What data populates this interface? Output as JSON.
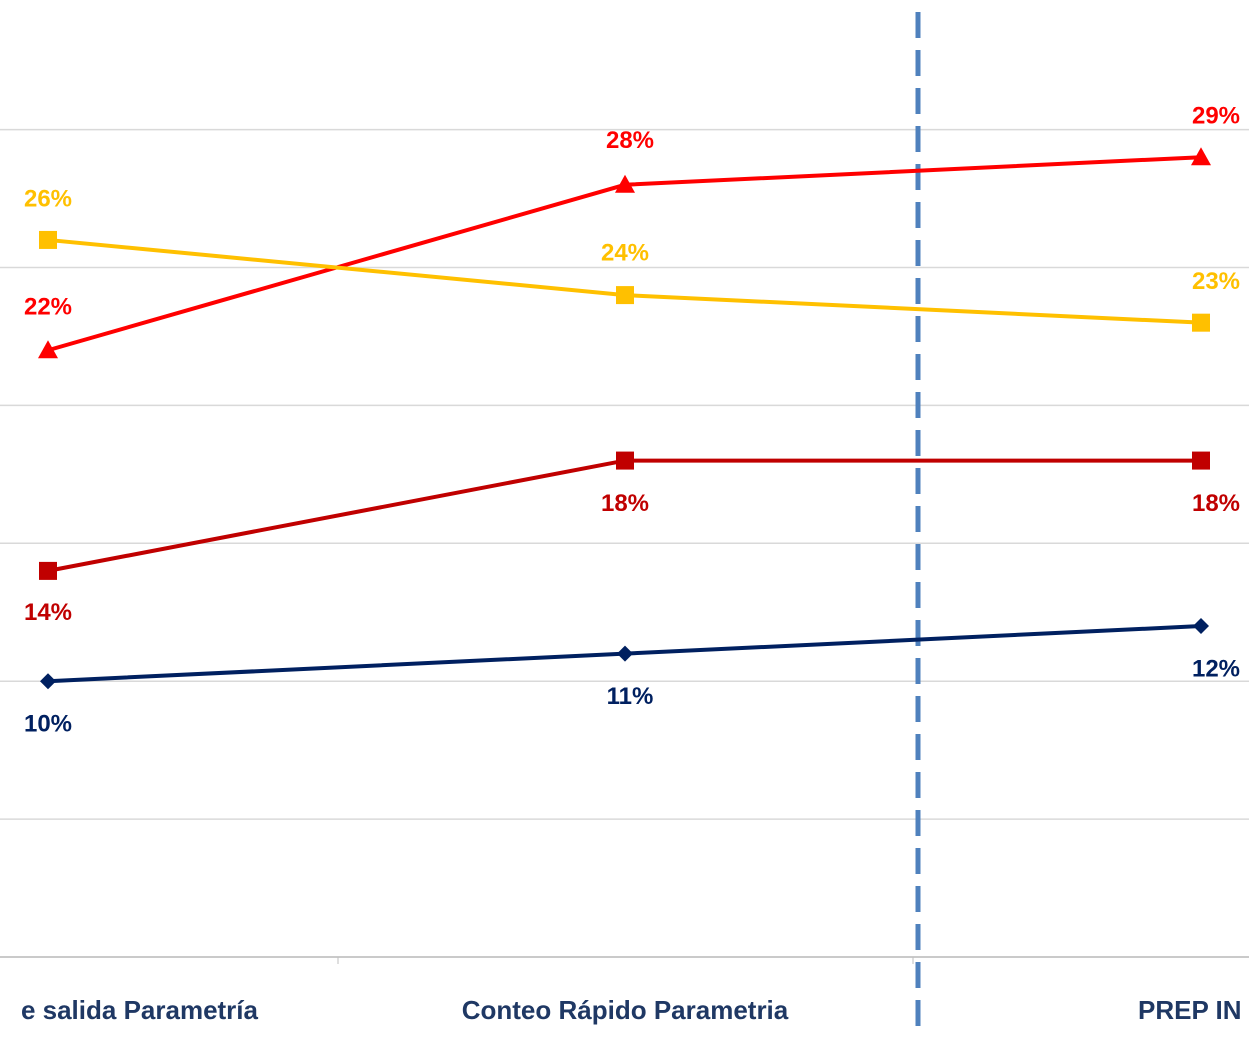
{
  "chart_data": {
    "type": "line",
    "categories": [
      "e salida Parametría",
      "Conteo Rápido Parametria",
      "PREP IN"
    ],
    "ylim": [
      0,
      34.7
    ],
    "yticks": [
      0,
      5,
      10,
      15,
      20,
      25,
      30
    ],
    "grid": true,
    "series": [
      {
        "color": "#ff0000",
        "marker": "triangle",
        "values": [
          22,
          28,
          29
        ],
        "value_labels": [
          "22%",
          "28%",
          "29%"
        ]
      },
      {
        "color": "#ffc000",
        "marker": "square",
        "values": [
          26,
          24,
          23
        ],
        "value_labels": [
          "26%",
          "24%",
          "23%"
        ]
      },
      {
        "color": "#c00000",
        "marker": "square",
        "values": [
          14,
          18,
          18
        ],
        "value_labels": [
          "14%",
          "18%",
          "18%"
        ]
      },
      {
        "color": "#002060",
        "marker": "diamond",
        "values": [
          10,
          11,
          12
        ],
        "value_labels": [
          "10%",
          "11%",
          "12%"
        ]
      }
    ]
  }
}
